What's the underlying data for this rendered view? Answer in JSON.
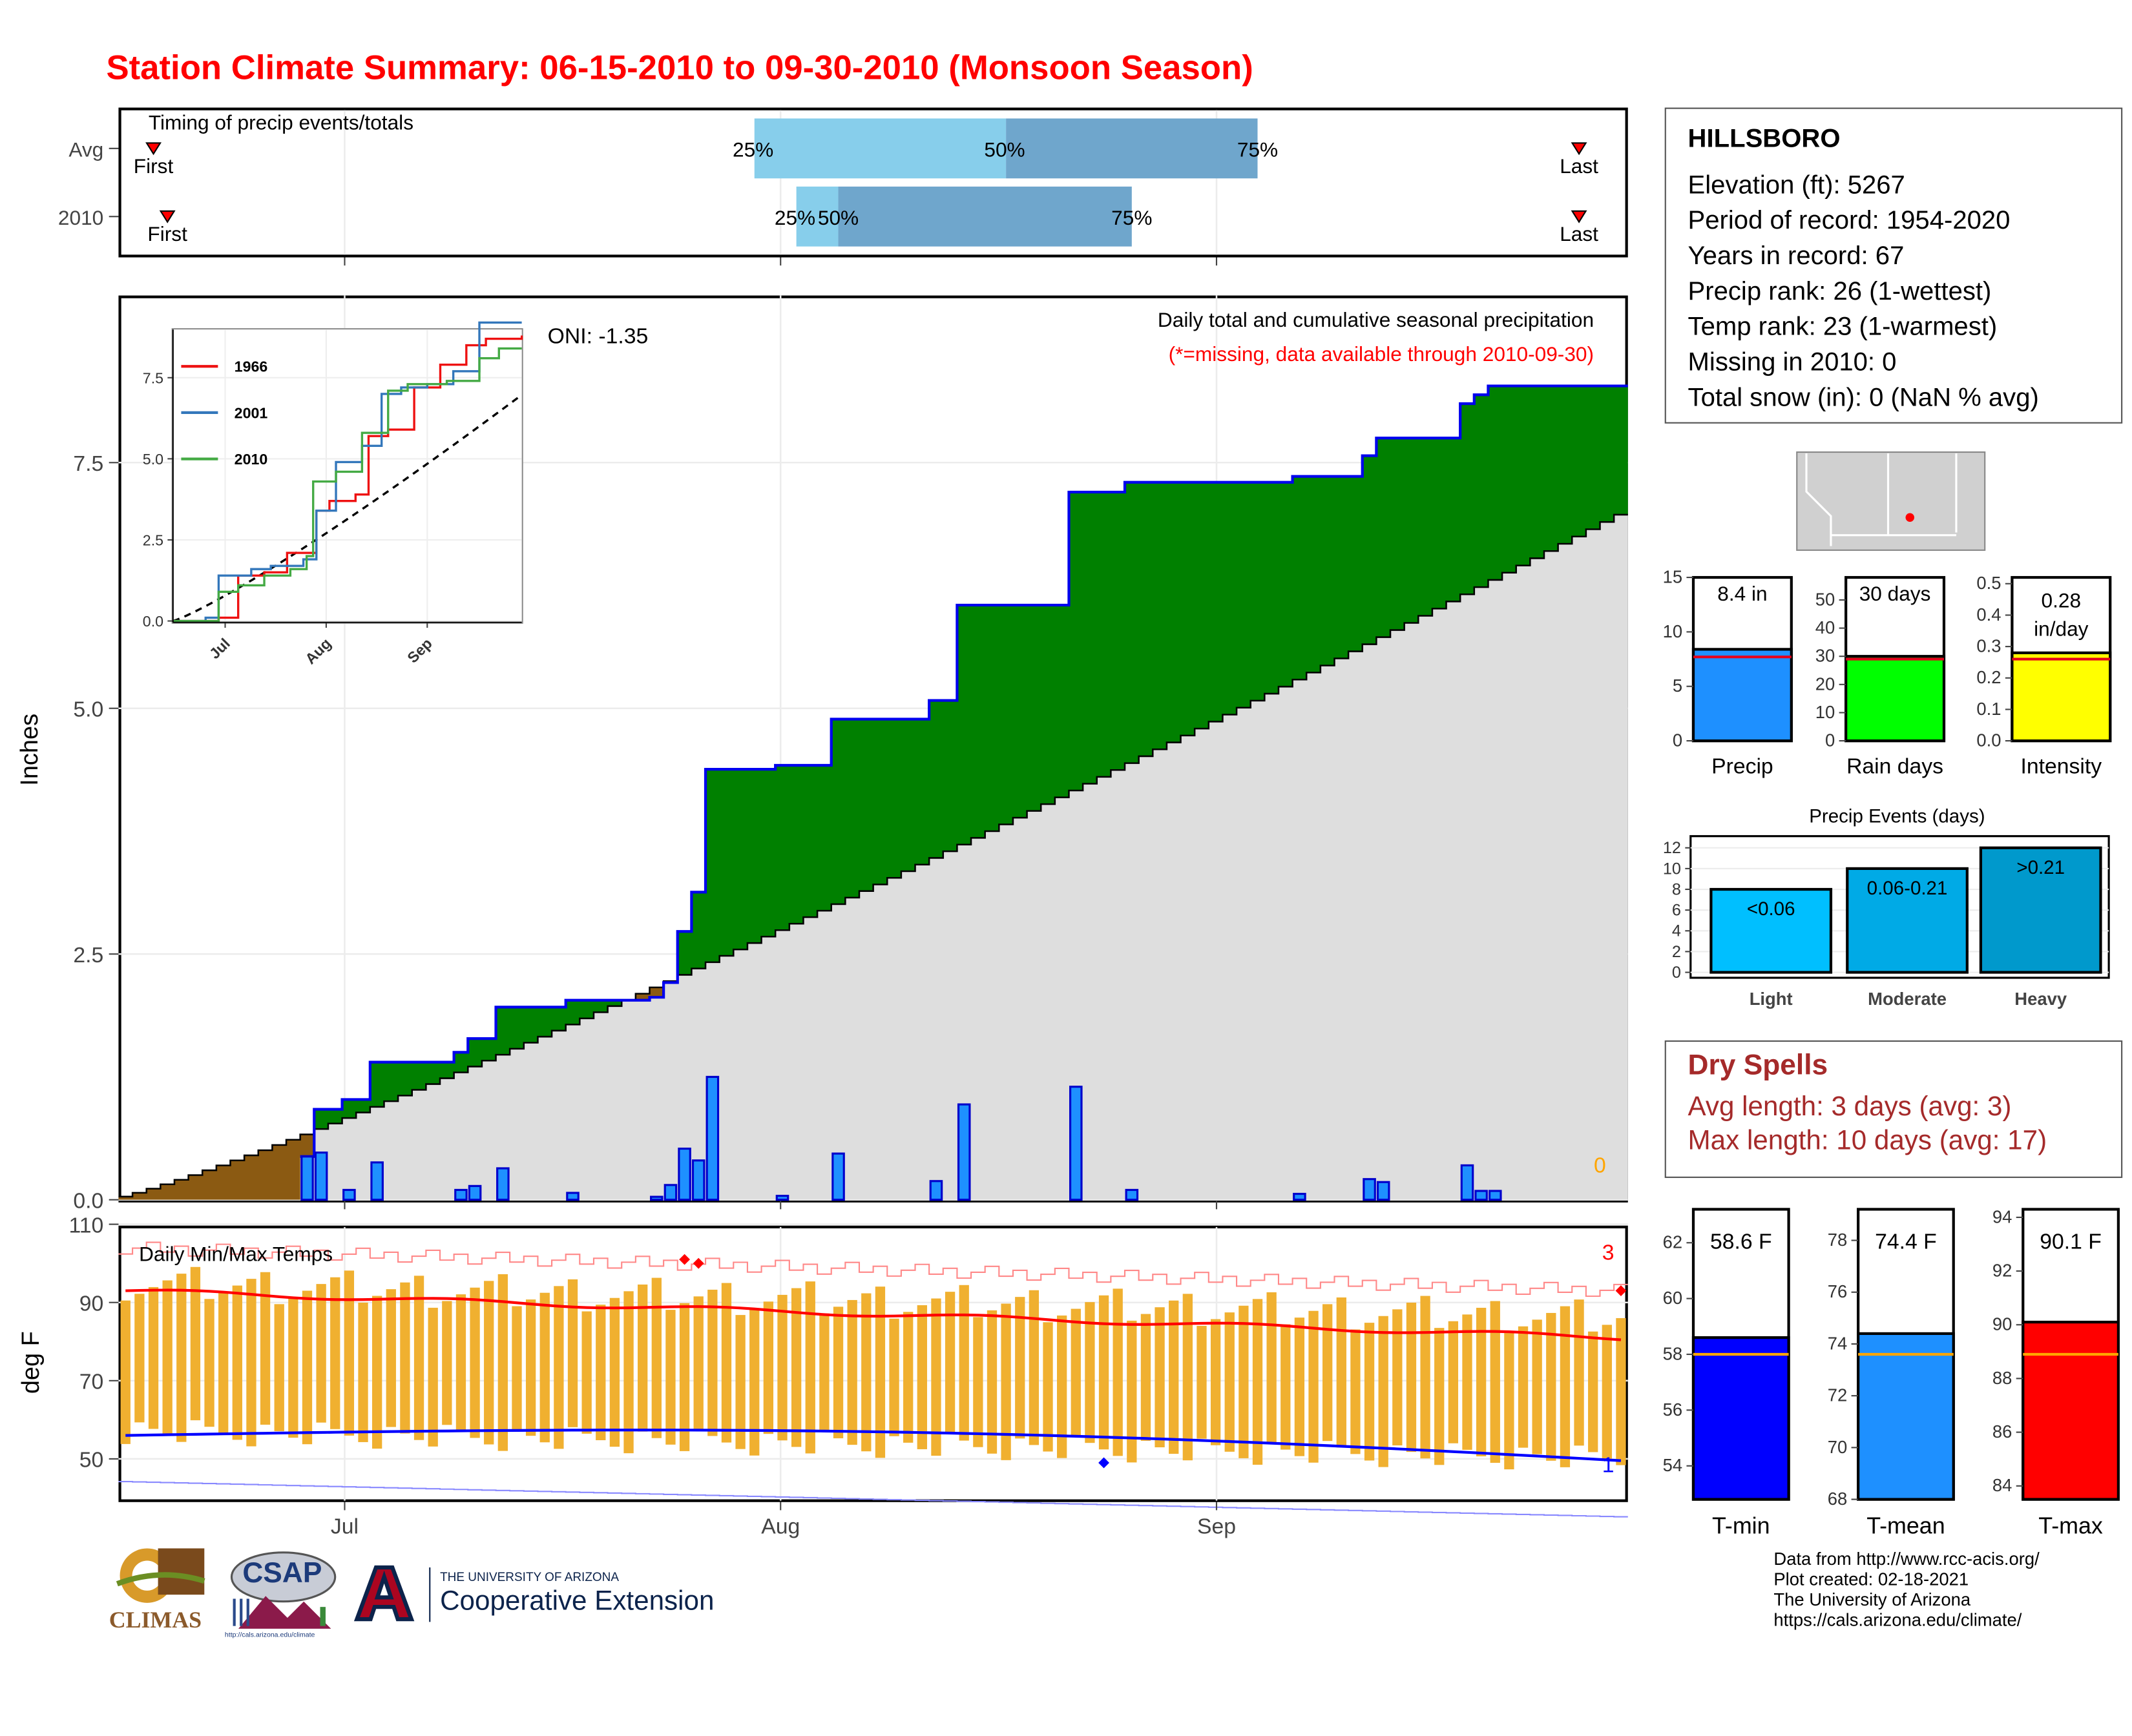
{
  "page": {
    "title": "Station Climate Summary: 06-15-2010 to 09-30-2010 (Monsoon Season)"
  },
  "colors": {
    "title": "#ff0000",
    "seasonal_total": "#008000",
    "average_cumulative": "#dedede",
    "daily_bars": "#1e90ff",
    "tmax_line": "#ff0000",
    "tmin_line": "#0000ff",
    "temp_bars": "#f0b030",
    "dry_spells": "#a52a2a"
  },
  "timing": {
    "title": "Timing of precip events/totals",
    "rows": [
      {
        "label": "Avg",
        "first_label": "First",
        "last_label": "Last",
        "first": "06-17",
        "last": "09-27",
        "p25": "07-30",
        "p50": "08-17",
        "p75": "09-04"
      },
      {
        "label": "2010",
        "first_label": "First",
        "last_label": "Last",
        "first": "06-18",
        "last": "09-27",
        "p25": "08-02",
        "p50": "08-05",
        "p75": "08-26"
      }
    ],
    "pct_labels": [
      "25%",
      "50%",
      "75%"
    ]
  },
  "precip": {
    "ylabel": "Inches",
    "note1": "Daily total and cumulative seasonal precipitation",
    "note2": "(*=missing, data available through 2010-09-30)",
    "oni": "ONI: -1.35",
    "missing_count": "0",
    "yticks": [
      "0.0",
      "2.5",
      "5.0",
      "7.5"
    ]
  },
  "inset": {
    "yticks": [
      "0.0",
      "2.5",
      "5.0",
      "7.5"
    ],
    "xticks": [
      "Jul",
      "Aug",
      "Sep"
    ],
    "legend": [
      {
        "name": "1966",
        "color": "#ee1111"
      },
      {
        "name": "2001",
        "color": "#3377bb"
      },
      {
        "name": "2010",
        "color": "#44aa44"
      }
    ]
  },
  "temps": {
    "ylabel": "deg F",
    "title": "Daily Min/Max Temps",
    "record_high_count": "3",
    "record_low_count": "1",
    "yticks": [
      "50",
      "70",
      "90",
      "110"
    ]
  },
  "xaxis": {
    "ticks": [
      "Jul",
      "Aug",
      "Sep"
    ]
  },
  "station": {
    "name": "HILLSBORO",
    "lines": [
      "Elevation (ft): 5267",
      "Period of record: 1954-2020",
      "Years in record: 67",
      "Precip rank: 26 (1-wettest)",
      "Temp rank: 23 (1-warmest)",
      "Missing in 2010: 0",
      "Total snow (in): 0 (NaN % avg)"
    ]
  },
  "summary_bars": [
    {
      "label": "Precip",
      "value_label": "8.4 in",
      "value": 8.4,
      "avg": 7.7,
      "ymax": 15,
      "ticks": [
        "0",
        "5",
        "10",
        "15"
      ],
      "color": "#1e90ff"
    },
    {
      "label": "Rain days",
      "value_label": "30 days",
      "value": 30,
      "avg": 29,
      "ymax": 58,
      "ticks": [
        "0",
        "10",
        "20",
        "30",
        "40",
        "50"
      ],
      "color": "#00ff00"
    },
    {
      "label": "Intensity",
      "value_label": "0.28 in/day",
      "value": 0.28,
      "avg": 0.26,
      "ymax": 0.52,
      "ticks": [
        "0.0",
        "0.1",
        "0.2",
        "0.3",
        "0.4",
        "0.5"
      ],
      "color": "#ffff00"
    }
  ],
  "events": {
    "title": "Precip Events (days)",
    "yticks": [
      "0",
      "2",
      "4",
      "6",
      "8",
      "10",
      "12"
    ],
    "categories": [
      "Light",
      "Moderate",
      "Heavy"
    ],
    "values": [
      8,
      10,
      12
    ],
    "bar_labels": [
      "<0.06",
      "0.06-0.21",
      ">0.21"
    ],
    "colors": [
      "#00bfff",
      "#00aae6",
      "#0099cc"
    ]
  },
  "dry_spells": {
    "title": "Dry Spells",
    "avg_line": "Avg length: 3 days (avg: 3)",
    "max_line": "Max length: 10 days (avg: 17)"
  },
  "temp_bars": [
    {
      "label": "T-min",
      "value_label": "58.6 F",
      "value": 58.6,
      "avg": 58.0,
      "ymin": 52.8,
      "ymax": 63.2,
      "ticks": [
        "54",
        "56",
        "58",
        "60",
        "62"
      ],
      "color": "#0000ff"
    },
    {
      "label": "T-mean",
      "value_label": "74.4 F",
      "value": 74.4,
      "avg": 73.6,
      "ymin": 68,
      "ymax": 79.2,
      "ticks": [
        "68",
        "70",
        "72",
        "74",
        "76",
        "78"
      ],
      "color": "#1e90ff"
    },
    {
      "label": "T-max",
      "value_label": "90.1 F",
      "value": 90.1,
      "avg": 88.9,
      "ymin": 83.5,
      "ymax": 94.3,
      "ticks": [
        "84",
        "86",
        "88",
        "90",
        "92",
        "94"
      ],
      "color": "#ff0000"
    }
  ],
  "credits": [
    "Data from http://www.rcc-acis.org/",
    "Plot created: 02-18-2021",
    "The University of Arizona",
    "https://cals.arizona.edu/climate/"
  ],
  "logos": {
    "climas": "CLIMAS",
    "csap": "CSAP",
    "csap_url": "http://cals.arizona.edu/climate",
    "ua_small": "THE UNIVERSITY OF ARIZONA",
    "ua_ext": "Cooperative Extension"
  },
  "chart_data": [
    {
      "type": "bar",
      "title": "Daily total and cumulative seasonal precipitation",
      "ylabel": "Inches",
      "ylim": [
        0,
        9.2
      ],
      "x_start": "2010-06-15",
      "x_end": "2010-09-30",
      "daily_precip": [
        {
          "date": "2010-06-28",
          "in": 0.44
        },
        {
          "date": "2010-06-29",
          "in": 0.48
        },
        {
          "date": "2010-07-01",
          "in": 0.1
        },
        {
          "date": "2010-07-03",
          "in": 0.38
        },
        {
          "date": "2010-07-09",
          "in": 0.1
        },
        {
          "date": "2010-07-10",
          "in": 0.14
        },
        {
          "date": "2010-07-12",
          "in": 0.32
        },
        {
          "date": "2010-07-17",
          "in": 0.07
        },
        {
          "date": "2010-07-23",
          "in": 0.03
        },
        {
          "date": "2010-07-24",
          "in": 0.15
        },
        {
          "date": "2010-07-25",
          "in": 0.52
        },
        {
          "date": "2010-07-26",
          "in": 0.4
        },
        {
          "date": "2010-07-27",
          "in": 1.25
        },
        {
          "date": "2010-08-01",
          "in": 0.04
        },
        {
          "date": "2010-08-05",
          "in": 0.47
        },
        {
          "date": "2010-08-12",
          "in": 0.19
        },
        {
          "date": "2010-08-14",
          "in": 0.97
        },
        {
          "date": "2010-08-22",
          "in": 1.15
        },
        {
          "date": "2010-08-26",
          "in": 0.1
        },
        {
          "date": "2010-09-07",
          "in": 0.06
        },
        {
          "date": "2010-09-12",
          "in": 0.21
        },
        {
          "date": "2010-09-13",
          "in": 0.18
        },
        {
          "date": "2010-09-19",
          "in": 0.35
        },
        {
          "date": "2010-09-20",
          "in": 0.09
        },
        {
          "date": "2010-09-21",
          "in": 0.09
        }
      ],
      "cumulative_2010_end": 8.43,
      "average_cumulative_end": 6.97
    },
    {
      "type": "line",
      "title": "Daily Min/Max Temps",
      "ylabel": "deg F",
      "ylim": [
        40,
        110
      ],
      "avg_max_start": 93,
      "avg_max_end": 81,
      "avg_min_start": 56,
      "avg_min_end": 48,
      "record_high_start": 104,
      "record_high_end": 93,
      "record_low_start": 46,
      "record_low_end": 37
    }
  ]
}
